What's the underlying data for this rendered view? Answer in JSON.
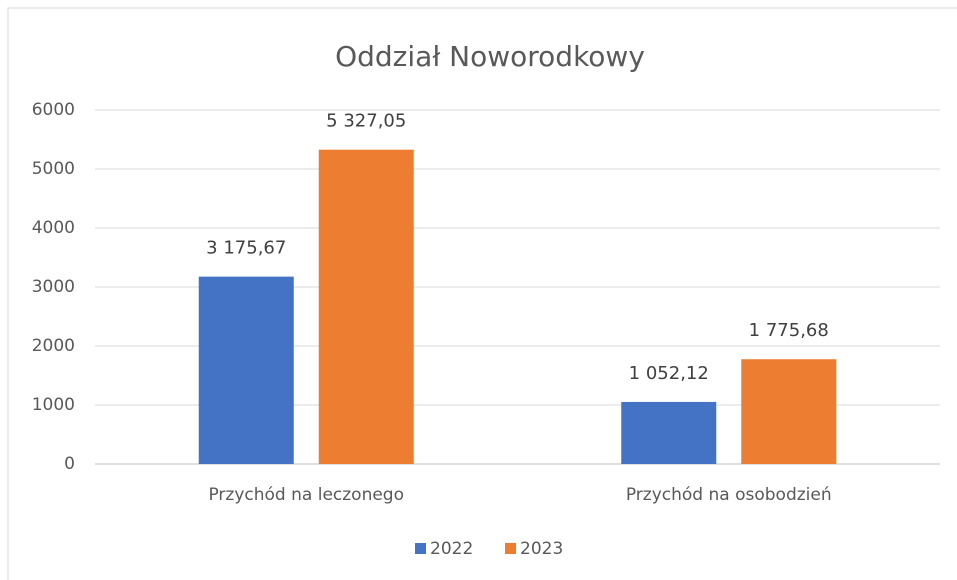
{
  "chart_data": {
    "type": "bar",
    "title": "Oddział Noworodkowy",
    "categories": [
      "Przychód na leczonego",
      "Przychód na osobodzień"
    ],
    "series": [
      {
        "name": "2022",
        "color": "#4472c4",
        "values": [
          3175.67,
          1052.12
        ],
        "value_labels": [
          "3 175,67",
          "1 052,12"
        ]
      },
      {
        "name": "2023",
        "color": "#ed7d31",
        "values": [
          5327.05,
          1775.68
        ],
        "value_labels": [
          "5 327,05",
          "1 775,68"
        ]
      }
    ],
    "ylim": [
      0,
      6000
    ],
    "yticks": [
      0,
      1000,
      2000,
      3000,
      4000,
      5000,
      6000
    ],
    "grid": true,
    "legend": "bottom"
  }
}
